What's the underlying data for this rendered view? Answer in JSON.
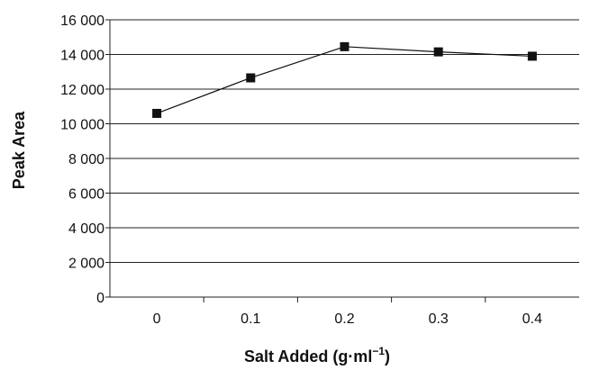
{
  "chart_data": {
    "type": "line",
    "title": "",
    "xlabel": "Salt Added (g·ml",
    "xlabel_superscript": "−1",
    "xlabel_suffix": ")",
    "ylabel": "Peak Area",
    "categories": [
      "0",
      "0.1",
      "0.2",
      "0.3",
      "0.4"
    ],
    "y_ticks": [
      "0",
      "2 000",
      "4 000",
      "6 000",
      "8 000",
      "10 000",
      "12 000",
      "14 000",
      "16 000"
    ],
    "ylim": [
      0,
      16000
    ],
    "grid": true,
    "legend": "none",
    "series": [
      {
        "values": [
          10600,
          12650,
          14450,
          14150,
          13900
        ],
        "color": "#111111",
        "marker": "square"
      }
    ]
  }
}
